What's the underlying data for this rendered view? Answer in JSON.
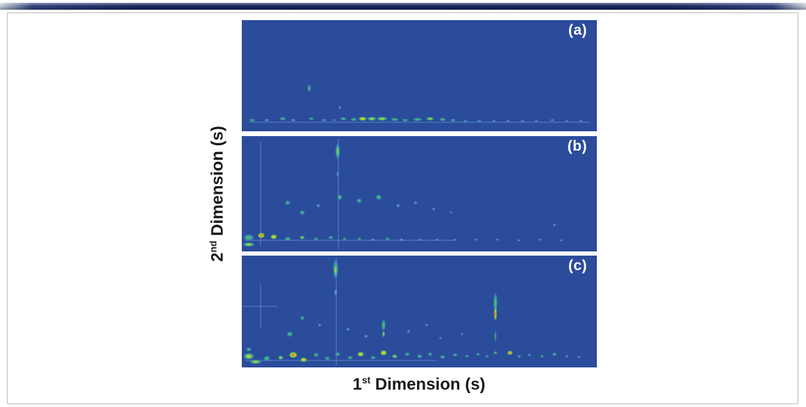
{
  "axes": {
    "x": {
      "base": "1",
      "sup": "st",
      "rest": " Dimension (s)"
    },
    "y": {
      "base": "2",
      "sup": "nd",
      "rest": " Dimension (s)"
    }
  },
  "colors": {
    "panel_background": "#2b4b9b",
    "top_bar": "#16245a",
    "frame_border": "#bcbcbc"
  },
  "chart_data": {
    "type": "heatmap",
    "subtype": "GCxGC contour plot, three stacked panels",
    "xlabel": "1st Dimension (s)",
    "ylabel": "2nd Dimension (s)",
    "axis_ticks_visible": false,
    "intensity_scale": [
      "blue-background",
      "cyan",
      "green",
      "yellow",
      "orange",
      "red"
    ],
    "peak_format": "[x_pct_of_width, y_pct_of_height_from_top, rx_px, ry_px, intensity_level_0_to_4]",
    "line_format": "[orientation_v_or_h, position_pct, span_start_pct, span_end_pct]",
    "panels": [
      {
        "label": "(a)",
        "lines": [
          [
            "h",
            91,
            2,
            98
          ]
        ],
        "peaks": [
          [
            3,
            90,
            5,
            2,
            1
          ],
          [
            7,
            90,
            4,
            2,
            0
          ],
          [
            11.5,
            88.5,
            5,
            2.5,
            1
          ],
          [
            14.5,
            90,
            4,
            2,
            0
          ],
          [
            19,
            61,
            2.5,
            6,
            1
          ],
          [
            19.5,
            89,
            4,
            2,
            1
          ],
          [
            23,
            90,
            4,
            2,
            0
          ],
          [
            26,
            90,
            3,
            1.5,
            0
          ],
          [
            27.5,
            79,
            2,
            3,
            0
          ],
          [
            28.5,
            89,
            5,
            2.5,
            1
          ],
          [
            31.5,
            89.5,
            5,
            2.5,
            1
          ],
          [
            34,
            88.5,
            6,
            3,
            3
          ],
          [
            36.5,
            89,
            7,
            3,
            2
          ],
          [
            39.5,
            89,
            8,
            3,
            2
          ],
          [
            43,
            89.5,
            6,
            2.5,
            1
          ],
          [
            46,
            90,
            5,
            2,
            1
          ],
          [
            49.5,
            89.5,
            7,
            2.5,
            1
          ],
          [
            53,
            89,
            6,
            2.5,
            2
          ],
          [
            56.5,
            89.5,
            5,
            2.5,
            1
          ],
          [
            59.5,
            90,
            4,
            2,
            1
          ],
          [
            63,
            90.5,
            4,
            1.5,
            0
          ],
          [
            67,
            90.5,
            4,
            1.5,
            0
          ],
          [
            71,
            90.5,
            3,
            1.5,
            0
          ],
          [
            75,
            90.5,
            3,
            1.5,
            0
          ],
          [
            79,
            90.5,
            3,
            1.5,
            0
          ],
          [
            83,
            90.5,
            3,
            1.5,
            0
          ],
          [
            87.5,
            90,
            4,
            1.5,
            0
          ],
          [
            91.5,
            90.5,
            3,
            1.5,
            0
          ],
          [
            95.5,
            90.5,
            3,
            1.5,
            0
          ]
        ]
      },
      {
        "label": "(b)",
        "lines": [
          [
            "v",
            27,
            2,
            98
          ],
          [
            "v",
            5,
            5,
            95
          ],
          [
            "h",
            90,
            1,
            60
          ]
        ],
        "peaks": [
          [
            27,
            13,
            3.5,
            13,
            1
          ],
          [
            27,
            13,
            2,
            9,
            2
          ],
          [
            27,
            33,
            1.5,
            5,
            0
          ],
          [
            13,
            58,
            4,
            3.5,
            1
          ],
          [
            17,
            66,
            4,
            3.5,
            1
          ],
          [
            21.5,
            60,
            3,
            3,
            0
          ],
          [
            27.5,
            53,
            4,
            4,
            1
          ],
          [
            33,
            56,
            4,
            3.5,
            1
          ],
          [
            38.5,
            53,
            4.5,
            4,
            1
          ],
          [
            44,
            60,
            3,
            3,
            0
          ],
          [
            49,
            58,
            3,
            2.5,
            0
          ],
          [
            54,
            63,
            2.5,
            2.5,
            0
          ],
          [
            59,
            66,
            2,
            2,
            0
          ],
          [
            2,
            88,
            8,
            5,
            1
          ],
          [
            5.5,
            86,
            5,
            4,
            4
          ],
          [
            9,
            87.5,
            5,
            3.5,
            3
          ],
          [
            2,
            94,
            9,
            3,
            2
          ],
          [
            13,
            89,
            5,
            3,
            1
          ],
          [
            17,
            88,
            4,
            2.5,
            2
          ],
          [
            21,
            89,
            3.5,
            2,
            1
          ],
          [
            25,
            88,
            4,
            2.5,
            1
          ],
          [
            29,
            89,
            3,
            2,
            1
          ],
          [
            33,
            89,
            3,
            2,
            1
          ],
          [
            37,
            89.5,
            3,
            2,
            0
          ],
          [
            41,
            89,
            3.5,
            2,
            1
          ],
          [
            45,
            89.5,
            3,
            2,
            0
          ],
          [
            50,
            90,
            3,
            1.5,
            0
          ],
          [
            55,
            90,
            3,
            1.5,
            0
          ],
          [
            60,
            90,
            3,
            1.5,
            0
          ],
          [
            66,
            90,
            3,
            1.5,
            0
          ],
          [
            72,
            90,
            3,
            1.5,
            0
          ],
          [
            78,
            90.5,
            3,
            1.5,
            0
          ],
          [
            84,
            90,
            3,
            1.5,
            0
          ],
          [
            88,
            77,
            2.5,
            2,
            0
          ],
          [
            90,
            90.5,
            3,
            1.5,
            0
          ]
        ]
      },
      {
        "label": "(c)",
        "lines": [
          [
            "v",
            26.5,
            2,
            98
          ],
          [
            "v",
            5,
            25,
            65
          ],
          [
            "h",
            45,
            0,
            10
          ],
          [
            "h",
            93,
            1,
            55
          ]
        ],
        "peaks": [
          [
            26.5,
            12,
            4,
            15,
            1
          ],
          [
            26.5,
            13,
            2.5,
            10,
            2
          ],
          [
            26.5,
            33,
            2,
            6,
            0
          ],
          [
            71.5,
            42,
            3,
            16,
            1
          ],
          [
            71.5,
            52,
            2,
            10,
            4
          ],
          [
            71.5,
            72,
            1.5,
            8,
            1
          ],
          [
            71.5,
            87,
            3,
            2.5,
            1
          ],
          [
            40,
            62,
            3,
            9,
            1
          ],
          [
            40,
            70,
            2,
            5,
            2
          ],
          [
            40,
            87,
            5,
            4,
            3
          ],
          [
            13.5,
            70,
            4.5,
            4,
            1
          ],
          [
            17,
            56,
            3,
            3,
            1
          ],
          [
            22,
            62,
            2.5,
            2.5,
            0
          ],
          [
            30,
            66,
            3,
            2.5,
            0
          ],
          [
            35,
            72,
            3,
            2.5,
            0
          ],
          [
            47,
            68,
            2.5,
            2.5,
            0
          ],
          [
            52,
            62,
            2.5,
            2,
            0
          ],
          [
            56,
            74,
            2.5,
            2,
            0
          ],
          [
            62,
            70,
            2,
            2,
            0
          ],
          [
            2,
            90,
            8,
            5,
            2
          ],
          [
            4,
            95,
            9,
            3,
            2
          ],
          [
            7,
            92,
            5,
            4,
            1
          ],
          [
            2,
            84,
            4,
            3,
            1
          ],
          [
            14.5,
            89,
            6,
            4.5,
            4
          ],
          [
            17.5,
            93,
            5,
            3.5,
            3
          ],
          [
            11,
            91,
            4,
            3,
            2
          ],
          [
            21,
            89,
            4,
            3,
            1
          ],
          [
            24,
            92,
            4,
            2.5,
            1
          ],
          [
            27,
            88,
            4,
            3,
            1
          ],
          [
            30.5,
            91,
            4,
            2.5,
            1
          ],
          [
            33.5,
            88.5,
            5,
            3.5,
            3
          ],
          [
            37,
            91,
            4,
            2.5,
            1
          ],
          [
            43,
            90,
            4,
            3,
            2
          ],
          [
            46.5,
            88,
            4,
            2.5,
            1
          ],
          [
            50,
            90,
            4,
            3,
            1
          ],
          [
            53,
            88,
            3.5,
            2.5,
            1
          ],
          [
            56.5,
            90.5,
            4,
            2.5,
            1
          ],
          [
            60,
            89,
            3.5,
            2.5,
            1
          ],
          [
            63.5,
            90,
            3,
            2,
            1
          ],
          [
            66.5,
            88.5,
            3,
            2,
            1
          ],
          [
            69,
            90,
            3,
            2,
            0
          ],
          [
            75.5,
            87,
            4,
            3,
            4
          ],
          [
            78,
            90,
            3,
            2,
            1
          ],
          [
            81,
            89,
            3,
            2,
            0
          ],
          [
            84.5,
            90,
            3,
            2,
            1
          ],
          [
            88,
            88.5,
            3.5,
            2.5,
            1
          ],
          [
            91.5,
            90,
            3,
            2,
            0
          ],
          [
            95,
            90.5,
            3,
            1.5,
            0
          ]
        ]
      }
    ]
  }
}
